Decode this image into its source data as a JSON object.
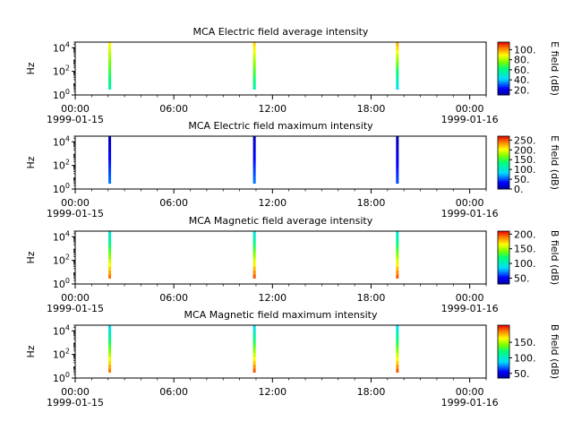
{
  "chart_data": [
    {
      "type": "heatmap",
      "title": "MCA  Electric field average intensity",
      "ylabel": "Hz",
      "cbar_label": "E field (dB)",
      "cbar_ticks": [
        "20.",
        "40.",
        "60.",
        "80.",
        "100."
      ],
      "cbar_range": [
        10,
        115
      ],
      "ylim": [
        1,
        30000
      ],
      "yscale": "log",
      "x_range": [
        0,
        25
      ],
      "x_ticks": [
        {
          "x": 0,
          "label": "00:00",
          "date": "1999-01-15"
        },
        {
          "x": 6,
          "label": "06:00",
          "date": ""
        },
        {
          "x": 12,
          "label": "12:00",
          "date": ""
        },
        {
          "x": 18,
          "label": "18:00",
          "date": ""
        },
        {
          "x": 24,
          "label": "00:00",
          "date": "1999-01-16"
        }
      ],
      "bursts": [
        {
          "time_h": 2.1,
          "freq_min_hz": 3.0,
          "freq_max_hz": 30000,
          "level_low": 55,
          "level_high": 90
        },
        {
          "time_h": 10.9,
          "freq_min_hz": 3.0,
          "freq_max_hz": 30000,
          "level_low": 55,
          "level_high": 95
        },
        {
          "time_h": 19.6,
          "freq_min_hz": 3.0,
          "freq_max_hz": 30000,
          "level_low": 40,
          "level_high": 100
        }
      ]
    },
    {
      "type": "heatmap",
      "title": "MCA  Electric field maximum intensity",
      "ylabel": "Hz",
      "cbar_label": "E field (dB)",
      "cbar_ticks": [
        "0.",
        "50.",
        "100.",
        "150.",
        "200.",
        "250."
      ],
      "cbar_range": [
        0,
        270
      ],
      "ylim": [
        1,
        30000
      ],
      "yscale": "log",
      "x_range": [
        0,
        25
      ],
      "x_ticks": [
        {
          "x": 0,
          "label": "00:00",
          "date": "1999-01-15"
        },
        {
          "x": 6,
          "label": "06:00",
          "date": ""
        },
        {
          "x": 12,
          "label": "12:00",
          "date": ""
        },
        {
          "x": 18,
          "label": "18:00",
          "date": ""
        },
        {
          "x": 24,
          "label": "00:00",
          "date": "1999-01-16"
        }
      ],
      "bursts": [
        {
          "time_h": 2.1,
          "freq_min_hz": 3.0,
          "freq_max_hz": 30000,
          "level_low": 60,
          "level_high": 10
        },
        {
          "time_h": 10.9,
          "freq_min_hz": 3.0,
          "freq_max_hz": 30000,
          "level_low": 60,
          "level_high": 10
        },
        {
          "time_h": 19.6,
          "freq_min_hz": 3.0,
          "freq_max_hz": 30000,
          "level_low": 50,
          "level_high": 5
        }
      ]
    },
    {
      "type": "heatmap",
      "title": "MCA  Magnetic field average intensity",
      "ylabel": "Hz",
      "cbar_label": "B field (dB)",
      "cbar_ticks": [
        "50.",
        "100.",
        "150.",
        "200."
      ],
      "cbar_range": [
        30,
        210
      ],
      "ylim": [
        1,
        30000
      ],
      "yscale": "log",
      "x_range": [
        0,
        25
      ],
      "x_ticks": [
        {
          "x": 0,
          "label": "00:00",
          "date": "1999-01-15"
        },
        {
          "x": 6,
          "label": "06:00",
          "date": ""
        },
        {
          "x": 12,
          "label": "12:00",
          "date": ""
        },
        {
          "x": 18,
          "label": "18:00",
          "date": ""
        },
        {
          "x": 24,
          "label": "00:00",
          "date": "1999-01-16"
        }
      ],
      "bursts": [
        {
          "time_h": 2.1,
          "freq_min_hz": 3.0,
          "freq_max_hz": 30000,
          "level_low": 195,
          "level_high": 90
        },
        {
          "time_h": 10.9,
          "freq_min_hz": 3.0,
          "freq_max_hz": 30000,
          "level_low": 200,
          "level_high": 90
        },
        {
          "time_h": 19.6,
          "freq_min_hz": 3.0,
          "freq_max_hz": 30000,
          "level_low": 200,
          "level_high": 90
        }
      ]
    },
    {
      "type": "heatmap",
      "title": "MCA  Magnetic field maximum intensity",
      "ylabel": "Hz",
      "cbar_label": "B field (dB)",
      "cbar_ticks": [
        "50.",
        "100.",
        "150."
      ],
      "cbar_range": [
        35,
        205
      ],
      "ylim": [
        1,
        30000
      ],
      "yscale": "log",
      "x_range": [
        0,
        25
      ],
      "x_ticks": [
        {
          "x": 0,
          "label": "00:00",
          "date": "1999-01-15"
        },
        {
          "x": 6,
          "label": "06:00",
          "date": ""
        },
        {
          "x": 12,
          "label": "12:00",
          "date": ""
        },
        {
          "x": 18,
          "label": "18:00",
          "date": ""
        },
        {
          "x": 24,
          "label": "00:00",
          "date": "1999-01-16"
        }
      ],
      "bursts": [
        {
          "time_h": 2.1,
          "freq_min_hz": 3.0,
          "freq_max_hz": 30000,
          "level_low": 190,
          "level_high": 85
        },
        {
          "time_h": 10.9,
          "freq_min_hz": 3.0,
          "freq_max_hz": 30000,
          "level_low": 195,
          "level_high": 85
        },
        {
          "time_h": 19.6,
          "freq_min_hz": 3.0,
          "freq_max_hz": 30000,
          "level_low": 195,
          "level_high": 85
        }
      ]
    }
  ]
}
